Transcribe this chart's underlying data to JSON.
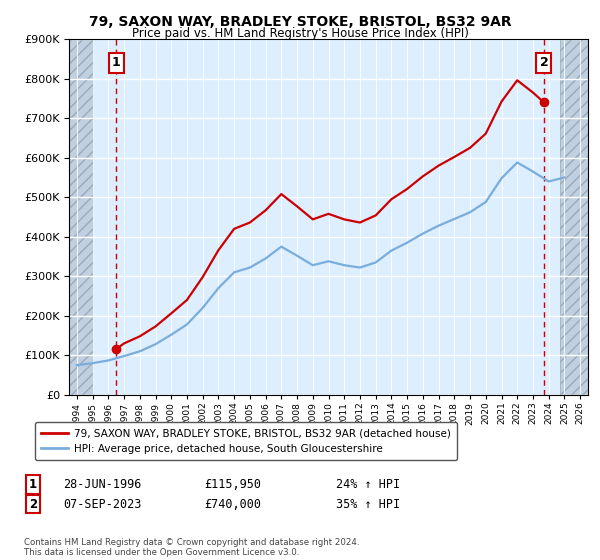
{
  "title1": "79, SAXON WAY, BRADLEY STOKE, BRISTOL, BS32 9AR",
  "title2": "Price paid vs. HM Land Registry's House Price Index (HPI)",
  "legend_line1": "79, SAXON WAY, BRADLEY STOKE, BRISTOL, BS32 9AR (detached house)",
  "legend_line2": "HPI: Average price, detached house, South Gloucestershire",
  "marker1_label": "1",
  "marker1_date": "28-JUN-1996",
  "marker1_price": "£115,950",
  "marker1_hpi": "24% ↑ HPI",
  "marker1_year": 1996.5,
  "marker1_value": 115950,
  "marker2_label": "2",
  "marker2_date": "07-SEP-2023",
  "marker2_price": "£740,000",
  "marker2_hpi": "35% ↑ HPI",
  "marker2_year": 2023.7,
  "marker2_value": 740000,
  "xmin": 1993.5,
  "xmax": 2026.5,
  "ymin": 0,
  "ymax": 900000,
  "hatch_left_end": 1995.0,
  "hatch_right_start": 2024.7,
  "red_color": "#cc0000",
  "blue_color": "#7aaddc",
  "background_color": "#ddeeff",
  "footer": "Contains HM Land Registry data © Crown copyright and database right 2024.\nThis data is licensed under the Open Government Licence v3.0.",
  "years_hpi": [
    1994,
    1995,
    1996,
    1997,
    1998,
    1999,
    2000,
    2001,
    2002,
    2003,
    2004,
    2005,
    2006,
    2007,
    2008,
    2009,
    2010,
    2011,
    2012,
    2013,
    2014,
    2015,
    2016,
    2017,
    2018,
    2019,
    2020,
    2021,
    2022,
    2023,
    2024,
    2025
  ],
  "values_hpi": [
    75000,
    80000,
    87000,
    98000,
    110000,
    128000,
    152000,
    178000,
    220000,
    270000,
    310000,
    322000,
    345000,
    375000,
    352000,
    328000,
    338000,
    328000,
    322000,
    335000,
    365000,
    385000,
    408000,
    428000,
    445000,
    462000,
    488000,
    548000,
    588000,
    565000,
    540000,
    550000
  ],
  "years_red": [
    1996.5,
    1997,
    1998,
    1999,
    2000,
    2001,
    2002,
    2003,
    2004,
    2005,
    2006,
    2007,
    2008,
    2009,
    2010,
    2011,
    2012,
    2013,
    2014,
    2015,
    2016,
    2017,
    2018,
    2019,
    2020,
    2021,
    2022,
    2023,
    2023.7
  ],
  "values_red": [
    115950,
    130000,
    148000,
    173000,
    206000,
    240000,
    298000,
    366000,
    420000,
    436000,
    467000,
    508000,
    477000,
    444000,
    458000,
    444000,
    436000,
    454000,
    495000,
    521000,
    553000,
    580000,
    602000,
    625000,
    661000,
    742000,
    796000,
    765000,
    740000
  ]
}
